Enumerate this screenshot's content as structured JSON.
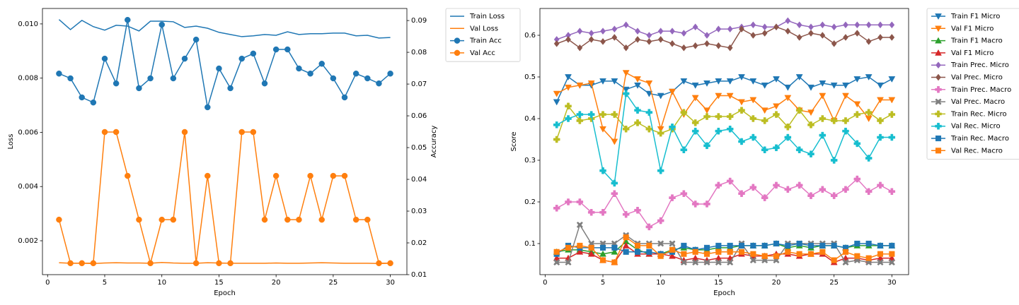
{
  "chart_data": [
    {
      "type": "line",
      "xlabel": "Epoch",
      "ylabel": "Loss",
      "y2label": "Accuracy",
      "x": [
        1,
        2,
        3,
        4,
        5,
        6,
        7,
        8,
        9,
        10,
        11,
        12,
        13,
        14,
        15,
        16,
        17,
        18,
        19,
        20,
        21,
        22,
        23,
        24,
        25,
        26,
        27,
        28,
        29,
        30
      ],
      "xlim": [
        -0.45,
        31.45
      ],
      "xticks": [
        0,
        5,
        10,
        15,
        20,
        25,
        30
      ],
      "ylim": [
        0.00075,
        0.01057
      ],
      "yticks": [
        0.002,
        0.004,
        0.006,
        0.008,
        {
          "value": 0.01,
          "label": "0.010"
        }
      ],
      "y2lim": [
        0.01,
        0.0938
      ],
      "y2ticks": [
        0.01,
        0.02,
        0.03,
        0.04,
        0.05,
        0.06,
        0.07,
        0.08,
        0.09
      ],
      "legend": "outside-right",
      "series": [
        {
          "name": "Train Loss",
          "color": "#1f77b4",
          "values": [
            0.01016,
            0.00979,
            0.01013,
            0.0099,
            0.00977,
            0.00995,
            0.00992,
            0.00974,
            0.0101,
            0.0101,
            0.01008,
            0.00987,
            0.00992,
            0.00984,
            0.00969,
            0.00961,
            0.00953,
            0.00956,
            0.00961,
            0.00958,
            0.00971,
            0.00961,
            0.00964,
            0.00964,
            0.00966,
            0.00966,
            0.00956,
            0.00958,
            0.00948,
            0.0095
          ]
        },
        {
          "name": "Val Loss",
          "color": "#ff7f0e",
          "values": [
            0.00119,
            0.00117,
            0.00117,
            0.00116,
            0.00118,
            0.00119,
            0.00118,
            0.00118,
            0.00117,
            0.0012,
            0.00118,
            0.00117,
            0.00117,
            0.00119,
            0.00118,
            0.00117,
            0.00117,
            0.00117,
            0.00117,
            0.00118,
            0.00117,
            0.00117,
            0.00118,
            0.00119,
            0.00118,
            0.00117,
            0.00117,
            0.00117,
            0.00116,
            0.00117
          ]
        },
        {
          "name": "Train Acc",
          "color": "#1f77b4",
          "axis": "y2",
          "marker": "o",
          "values": [
            0.0733,
            0.0718,
            0.0658,
            0.0642,
            0.078,
            0.0702,
            0.0902,
            0.0687,
            0.0718,
            0.0887,
            0.0718,
            0.078,
            0.084,
            0.0627,
            0.0749,
            0.0687,
            0.078,
            0.0796,
            0.0702,
            0.0809,
            0.0809,
            0.0749,
            0.0733,
            0.0764,
            0.0718,
            0.0658,
            0.0733,
            0.0718,
            0.0702,
            0.0733
          ]
        },
        {
          "name": "Val Acc",
          "color": "#ff7f0e",
          "axis": "y2",
          "marker": "o",
          "values": [
            0.0273,
            0.0136,
            0.0136,
            0.0136,
            0.0549,
            0.0549,
            0.0411,
            0.0273,
            0.0136,
            0.0273,
            0.0273,
            0.0549,
            0.0136,
            0.0411,
            0.0136,
            0.0136,
            0.0549,
            0.0549,
            0.0273,
            0.0411,
            0.0273,
            0.0273,
            0.0411,
            0.0273,
            0.0411,
            0.0411,
            0.0273,
            0.0273,
            0.0136,
            0.0136
          ]
        }
      ]
    },
    {
      "type": "line",
      "xlabel": "Epoch",
      "ylabel": "Score",
      "x": [
        1,
        2,
        3,
        4,
        5,
        6,
        7,
        8,
        9,
        10,
        11,
        12,
        13,
        14,
        15,
        16,
        17,
        18,
        19,
        20,
        21,
        22,
        23,
        24,
        25,
        26,
        27,
        28,
        29,
        30
      ],
      "xlim": [
        -0.45,
        31.45
      ],
      "xticks": [
        0,
        5,
        10,
        15,
        20,
        25,
        30
      ],
      "ylim": [
        0.0254,
        0.6644
      ],
      "yticks": [
        0.1,
        0.2,
        0.3,
        0.4,
        0.5,
        0.6
      ],
      "legend": "outside-right",
      "series": [
        {
          "name": "Train F1 Micro",
          "color": "#1f77b4",
          "marker": "v",
          "values": [
            0.44,
            0.5,
            0.48,
            0.48,
            0.49,
            0.49,
            0.47,
            0.48,
            0.46,
            0.455,
            0.465,
            0.49,
            0.48,
            0.485,
            0.49,
            0.49,
            0.5,
            0.49,
            0.48,
            0.495,
            0.475,
            0.5,
            0.475,
            0.485,
            0.48,
            0.48,
            0.495,
            0.5,
            0.48,
            0.495
          ]
        },
        {
          "name": "Val F1 Micro",
          "color": "#ff7f0e",
          "marker": "v",
          "values": [
            0.46,
            0.475,
            0.48,
            0.485,
            0.375,
            0.345,
            0.51,
            0.495,
            0.485,
            0.375,
            0.465,
            0.41,
            0.45,
            0.42,
            0.455,
            0.455,
            0.44,
            0.445,
            0.42,
            0.43,
            0.45,
            0.42,
            0.415,
            0.455,
            0.395,
            0.455,
            0.435,
            0.4,
            0.445,
            0.445
          ]
        },
        {
          "name": "Train F1 Macro",
          "color": "#2ca02c",
          "marker": "^",
          "values": [
            0.08,
            0.085,
            0.085,
            0.08,
            0.075,
            0.08,
            0.105,
            0.085,
            0.075,
            0.075,
            0.085,
            0.09,
            0.085,
            0.085,
            0.09,
            0.09,
            0.095,
            0.095,
            0.095,
            0.1,
            0.09,
            0.095,
            0.09,
            0.095,
            0.095,
            0.09,
            0.095,
            0.095,
            0.095,
            0.095
          ]
        },
        {
          "name": "Val F1 Micro",
          "color": "#d62728",
          "marker": "^",
          "values": [
            0.065,
            0.065,
            0.08,
            0.075,
            0.06,
            0.055,
            0.095,
            0.075,
            0.075,
            0.075,
            0.07,
            0.06,
            0.065,
            0.06,
            0.065,
            0.065,
            0.075,
            0.07,
            0.07,
            0.075,
            0.075,
            0.07,
            0.075,
            0.075,
            0.055,
            0.065,
            0.065,
            0.06,
            0.065,
            0.065
          ]
        },
        {
          "name": "Train Prec. Micro",
          "color": "#9467bd",
          "marker": "D",
          "values": [
            0.59,
            0.6,
            0.61,
            0.605,
            0.61,
            0.615,
            0.625,
            0.61,
            0.6,
            0.61,
            0.61,
            0.605,
            0.62,
            0.6,
            0.615,
            0.615,
            0.62,
            0.625,
            0.62,
            0.62,
            0.635,
            0.625,
            0.62,
            0.625,
            0.62,
            0.625,
            0.625,
            0.625,
            0.625,
            0.625
          ]
        },
        {
          "name": "Val Prec. Micro",
          "color": "#8c564b",
          "marker": "D",
          "values": [
            0.58,
            0.59,
            0.57,
            0.59,
            0.585,
            0.595,
            0.57,
            0.59,
            0.585,
            0.59,
            0.58,
            0.57,
            0.575,
            0.58,
            0.575,
            0.57,
            0.615,
            0.6,
            0.605,
            0.62,
            0.61,
            0.595,
            0.605,
            0.6,
            0.58,
            0.595,
            0.605,
            0.585,
            0.595,
            0.595
          ]
        },
        {
          "name": "Train Prec. Macro",
          "color": "#e377c2",
          "marker": "P",
          "values": [
            0.185,
            0.2,
            0.2,
            0.175,
            0.175,
            0.22,
            0.17,
            0.18,
            0.14,
            0.155,
            0.21,
            0.22,
            0.195,
            0.195,
            0.24,
            0.25,
            0.22,
            0.235,
            0.21,
            0.24,
            0.23,
            0.24,
            0.215,
            0.23,
            0.215,
            0.23,
            0.255,
            0.225,
            0.24,
            0.225
          ]
        },
        {
          "name": "Val Prec. Macro",
          "color": "#7f7f7f",
          "marker": "X",
          "values": [
            0.055,
            0.055,
            0.145,
            0.1,
            0.1,
            0.1,
            0.12,
            0.1,
            0.1,
            0.1,
            0.1,
            0.055,
            0.055,
            0.055,
            0.055,
            0.055,
            0.1,
            0.06,
            0.06,
            0.06,
            0.1,
            0.1,
            0.1,
            0.1,
            0.1,
            0.055,
            0.06,
            0.055,
            0.055,
            0.055
          ]
        },
        {
          "name": "Train Rec. Micro",
          "color": "#bcbd22",
          "marker": "P",
          "values": [
            0.35,
            0.43,
            0.395,
            0.4,
            0.41,
            0.41,
            0.375,
            0.39,
            0.375,
            0.365,
            0.375,
            0.415,
            0.39,
            0.405,
            0.405,
            0.405,
            0.42,
            0.4,
            0.395,
            0.41,
            0.38,
            0.42,
            0.385,
            0.4,
            0.395,
            0.395,
            0.41,
            0.415,
            0.395,
            0.41
          ]
        },
        {
          "name": "Val Rec. Micro",
          "color": "#17becf",
          "marker": "P",
          "values": [
            0.385,
            0.4,
            0.41,
            0.41,
            0.275,
            0.245,
            0.46,
            0.42,
            0.415,
            0.275,
            0.38,
            0.325,
            0.37,
            0.335,
            0.37,
            0.375,
            0.345,
            0.355,
            0.325,
            0.33,
            0.355,
            0.325,
            0.315,
            0.36,
            0.3,
            0.37,
            0.34,
            0.305,
            0.355,
            0.355
          ]
        },
        {
          "name": "Train Rec. Macro",
          "color": "#1f77b4",
          "marker": "s",
          "values": [
            0.075,
            0.095,
            0.09,
            0.09,
            0.09,
            0.09,
            0.08,
            0.08,
            0.08,
            0.075,
            0.08,
            0.095,
            0.085,
            0.09,
            0.095,
            0.095,
            0.095,
            0.095,
            0.095,
            0.1,
            0.095,
            0.1,
            0.095,
            0.095,
            0.095,
            0.09,
            0.1,
            0.1,
            0.095,
            0.095
          ]
        },
        {
          "name": "Val Rec. Macro",
          "color": "#ff7f0e",
          "marker": "s",
          "values": [
            0.08,
            0.09,
            0.095,
            0.09,
            0.06,
            0.055,
            0.115,
            0.095,
            0.095,
            0.07,
            0.085,
            0.075,
            0.08,
            0.075,
            0.08,
            0.08,
            0.08,
            0.075,
            0.07,
            0.07,
            0.08,
            0.075,
            0.075,
            0.08,
            0.06,
            0.08,
            0.07,
            0.065,
            0.075,
            0.075
          ]
        }
      ]
    }
  ]
}
